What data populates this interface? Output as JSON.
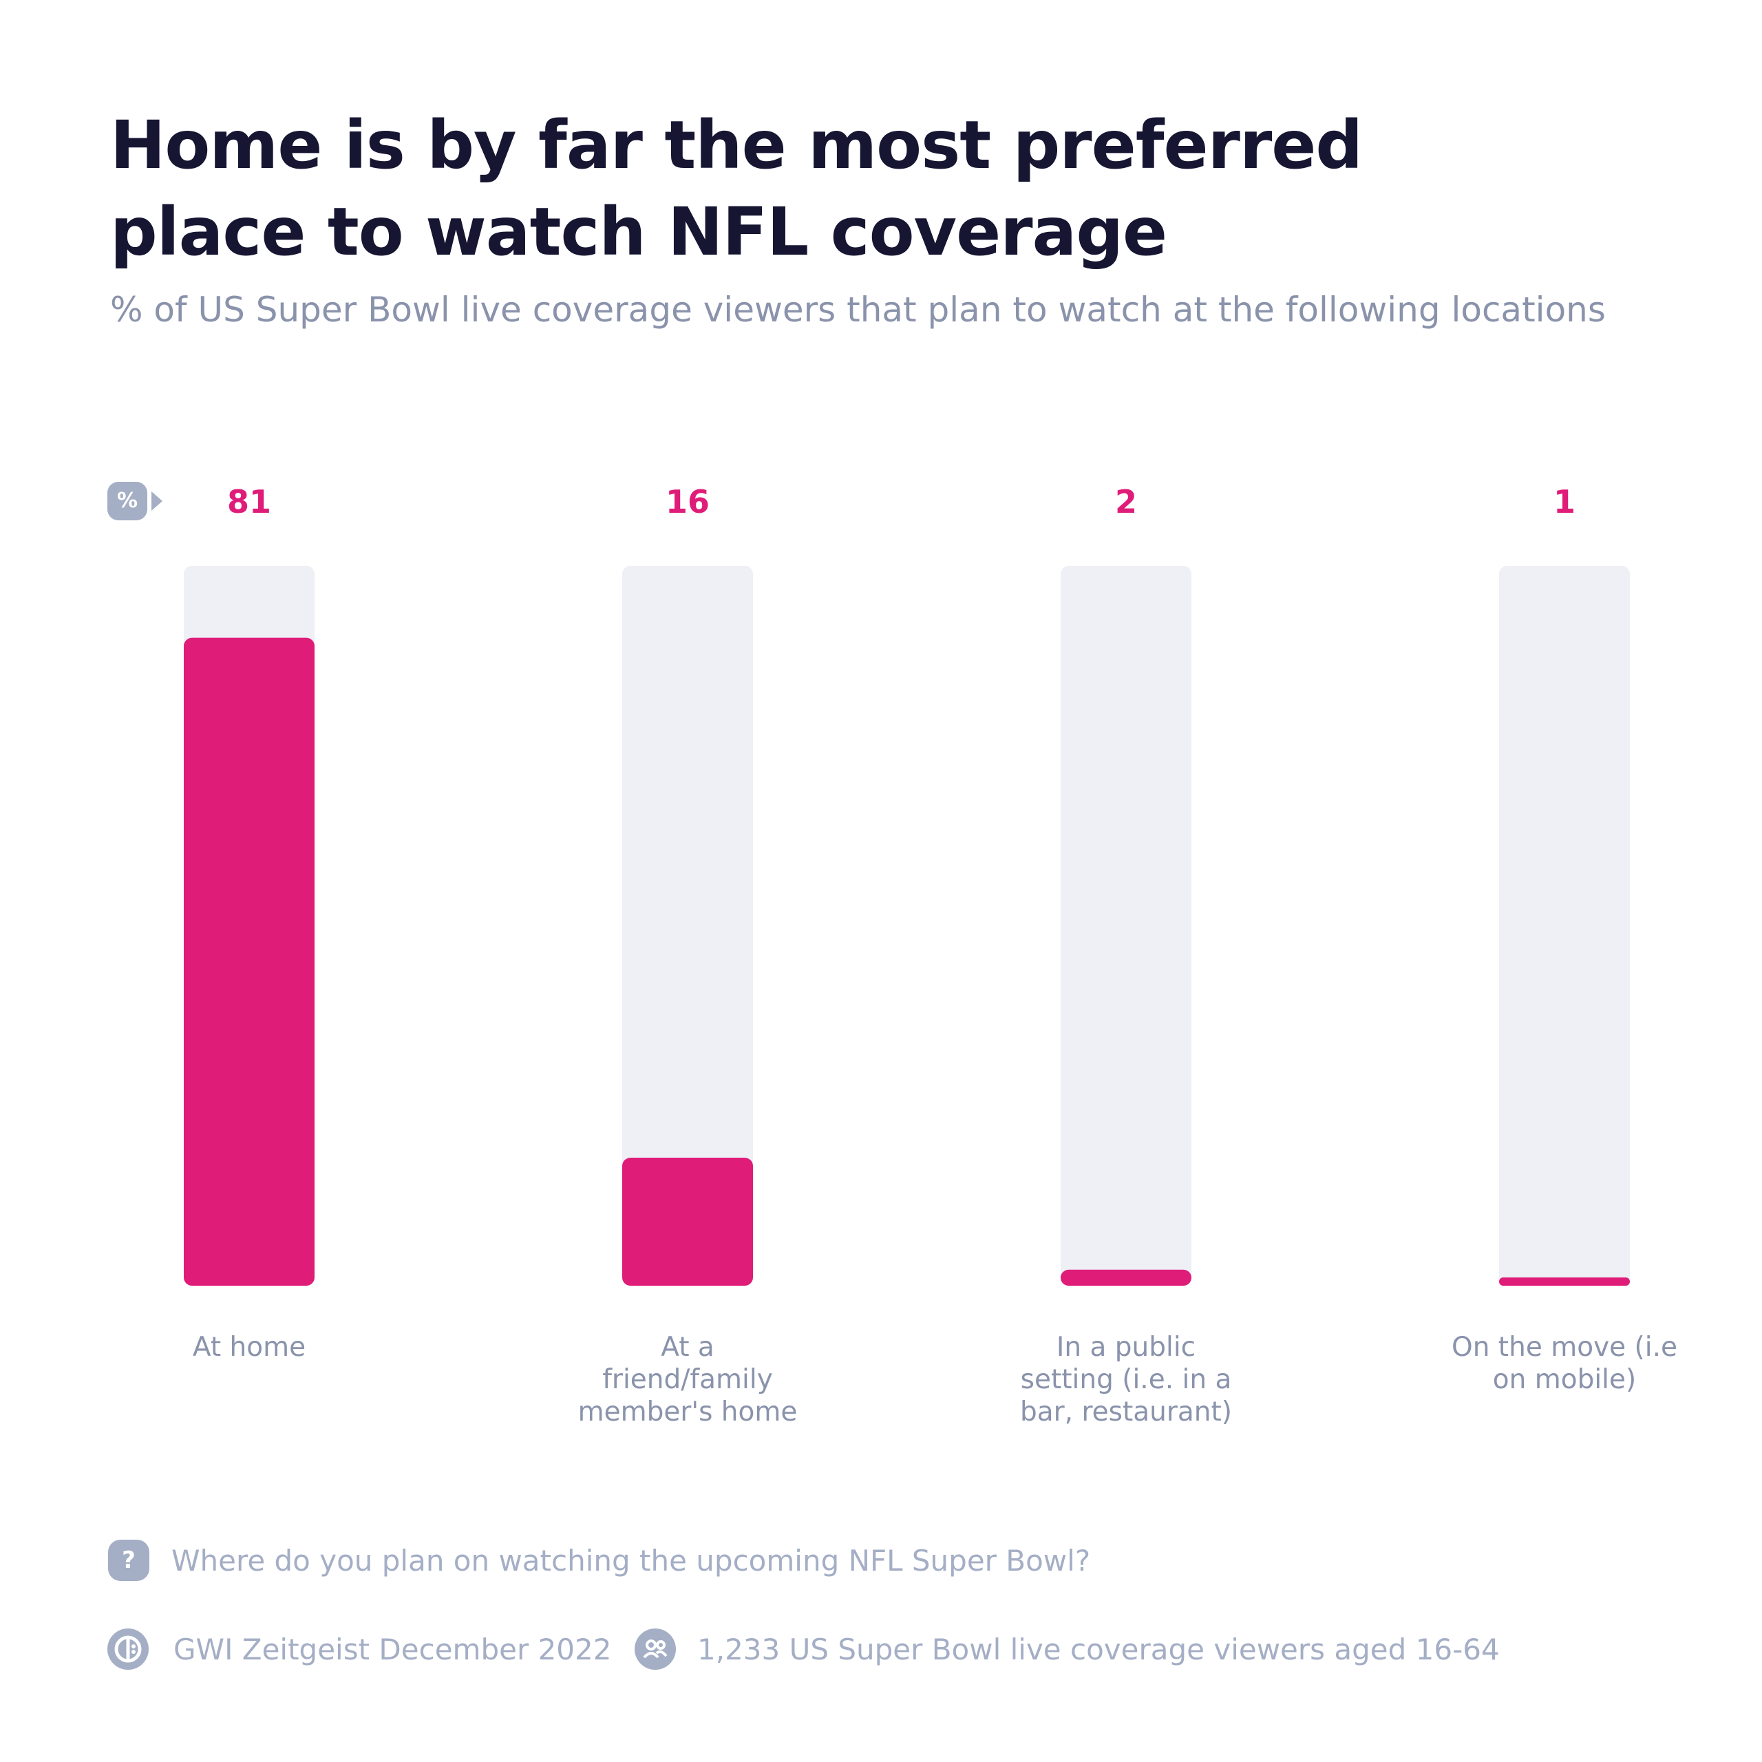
{
  "colors": {
    "bar_fill": "#df1c78",
    "track": "#eef0f5",
    "title": "#161633",
    "muted": "#8a93ab",
    "icon": "#a4aec5"
  },
  "unit_badge": "%",
  "chart_data": {
    "type": "bar",
    "title": "Home is by far the most preferred place to watch NFL coverage",
    "subtitle": "% of US Super Bowl live coverage viewers that plan to watch at the following locations",
    "categories": [
      "At home",
      "At a friend/family member's home",
      "In a public setting (i.e. in a bar, restaurant)",
      "On the move (i.e on mobile)"
    ],
    "category_lines": [
      [
        "At home"
      ],
      [
        "At a",
        "friend/family",
        "member's home"
      ],
      [
        "In a public",
        "setting (i.e. in a",
        "bar, restaurant)"
      ],
      [
        "On the move (i.e",
        "on mobile)"
      ]
    ],
    "values": [
      81,
      16,
      2,
      1
    ],
    "value_labels": [
      "81",
      "16",
      "2",
      "1"
    ],
    "ylim": [
      0,
      90
    ],
    "grid": false,
    "legend": "none"
  },
  "footer": {
    "question_icon": "question-icon",
    "question": "Where do you plan on watching the upcoming NFL Super Bowl?",
    "source_icon": "gwi-logo-icon",
    "source": "GWI Zeitgeist December 2022",
    "audience_icon": "people-icon",
    "audience": "1,233 US Super Bowl live coverage viewers aged 16-64"
  }
}
